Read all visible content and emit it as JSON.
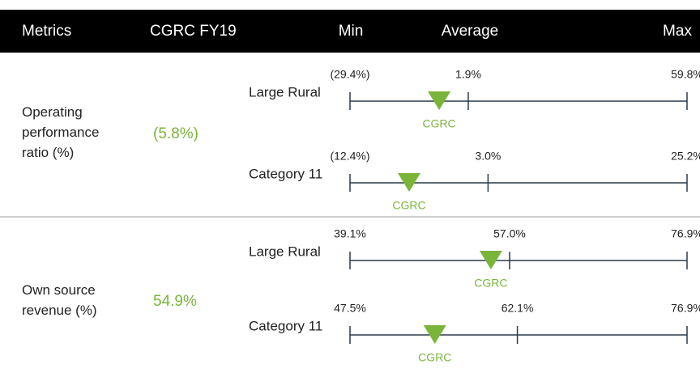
{
  "header": {
    "columns": [
      "Metrics",
      "CGRC FY19",
      "Min",
      "Average",
      "Max"
    ]
  },
  "rows": [
    {
      "metric": "Operating performance ratio (%)",
      "value": {
        "value": -5.8,
        "label": "(5.8%)"
      },
      "groups": [
        {
          "name": "Large Rural",
          "min": {
            "value": -29.4,
            "label": "(29.4%)"
          },
          "average": {
            "value": 1.9,
            "label": "1.9%"
          },
          "max": {
            "value": 59.8,
            "label": "59.8%"
          },
          "marker_label": "CGRC"
        },
        {
          "name": "Category 11",
          "min": {
            "value": -12.4,
            "label": "(12.4%)"
          },
          "average": {
            "value": 3.0,
            "label": "3.0%"
          },
          "max": {
            "value": 25.2,
            "label": "25.2%"
          },
          "marker_label": "CGRC"
        }
      ]
    },
    {
      "metric": "Own source revenue (%)",
      "value": {
        "value": 54.9,
        "label": "54.9%"
      },
      "groups": [
        {
          "name": "Large Rural",
          "min": {
            "value": 39.1,
            "label": "39.1%"
          },
          "average": {
            "value": 57.0,
            "label": "57.0%"
          },
          "max": {
            "value": 76.9,
            "label": "76.9%"
          },
          "marker_label": "CGRC"
        },
        {
          "name": "Category 11",
          "min": {
            "value": 47.5,
            "label": "47.5%"
          },
          "average": {
            "value": 62.1,
            "label": "62.1%"
          },
          "max": {
            "value": 76.9,
            "label": "76.9%"
          },
          "marker_label": "CGRC"
        }
      ]
    }
  ]
}
